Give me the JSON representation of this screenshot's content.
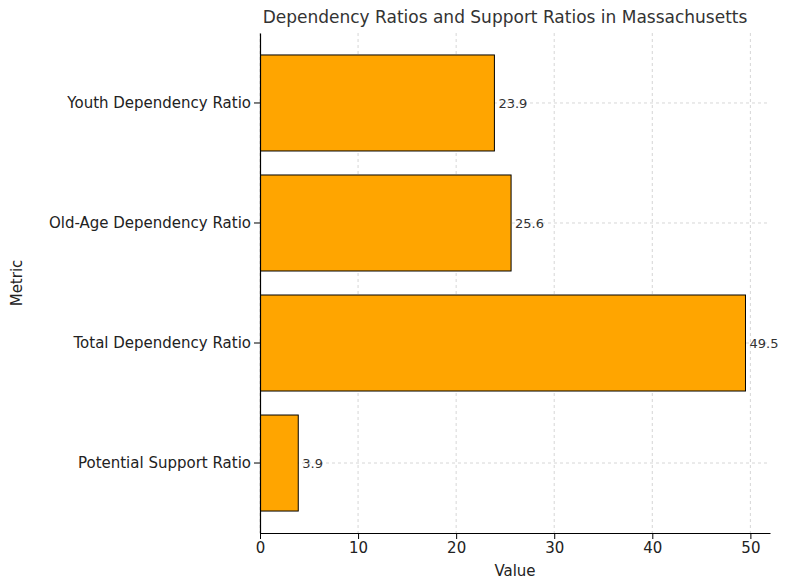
{
  "chart_data": {
    "type": "bar",
    "title": "Dependency Ratios and Support Ratios in Massachusetts",
    "x_label": "Value",
    "y_label": "Metric",
    "categories": [
      "Youth Dependency Ratio",
      "Old-Age Dependency Ratio",
      "Total Dependency Ratio",
      "Potential Support Ratio"
    ],
    "values": [
      23.9,
      25.6,
      49.5,
      3.9
    ],
    "color": "#ffa500",
    "orientation": "horizontal",
    "xlim": [
      0,
      52
    ],
    "xticks": [
      0,
      10,
      20,
      30,
      40,
      50
    ],
    "grid": true,
    "data_labels": true
  }
}
